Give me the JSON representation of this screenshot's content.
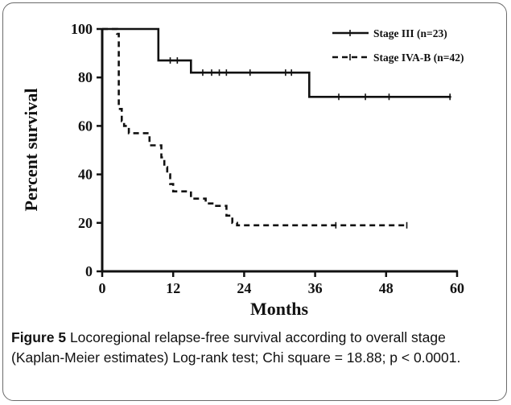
{
  "chart_data": {
    "type": "line",
    "step": true,
    "xlabel": "Months",
    "ylabel": "Percent survival",
    "xlim": [
      0,
      60
    ],
    "ylim": [
      0,
      100
    ],
    "xticks": [
      0,
      12,
      24,
      36,
      48,
      60
    ],
    "yticks": [
      0,
      20,
      40,
      60,
      80,
      100
    ],
    "grid": false,
    "legend_position": "top-right",
    "series": [
      {
        "name": "Stage III (n=23)",
        "style": "solid",
        "points": [
          [
            0,
            100
          ],
          [
            9.5,
            100
          ],
          [
            9.5,
            87
          ],
          [
            15,
            87
          ],
          [
            15,
            82
          ],
          [
            35,
            82
          ],
          [
            35,
            72
          ],
          [
            59,
            72
          ]
        ],
        "censored": [
          11.5,
          12.7,
          17,
          18.5,
          19.8,
          21,
          25,
          31,
          32,
          40,
          44.5,
          48.5,
          58.8
        ]
      },
      {
        "name": "Stage IVA-B (n=42)",
        "style": "dashed",
        "points": [
          [
            0,
            100
          ],
          [
            2.5,
            100
          ],
          [
            2.5,
            98
          ],
          [
            2.8,
            98
          ],
          [
            2.8,
            67
          ],
          [
            3.3,
            67
          ],
          [
            3.3,
            62
          ],
          [
            3.7,
            62
          ],
          [
            3.7,
            60
          ],
          [
            4.5,
            60
          ],
          [
            4.5,
            57
          ],
          [
            8,
            57
          ],
          [
            8,
            52
          ],
          [
            10,
            52
          ],
          [
            10,
            47
          ],
          [
            10.5,
            47
          ],
          [
            10.5,
            43
          ],
          [
            11,
            43
          ],
          [
            11,
            40
          ],
          [
            11.5,
            40
          ],
          [
            11.5,
            36
          ],
          [
            12,
            36
          ],
          [
            12,
            33
          ],
          [
            15,
            33
          ],
          [
            15,
            30
          ],
          [
            17.5,
            30
          ],
          [
            17.5,
            28
          ],
          [
            19,
            28
          ],
          [
            19,
            27
          ],
          [
            21,
            27
          ],
          [
            21,
            23
          ],
          [
            22,
            23
          ],
          [
            22,
            20
          ],
          [
            22.8,
            20
          ],
          [
            22.8,
            19
          ],
          [
            51.5,
            19
          ]
        ],
        "censored": [
          39.5,
          51.5
        ]
      }
    ]
  },
  "caption": {
    "label": "Figure 5",
    "text": " Locoregional relapse-free survival according to overall stage (Kaplan-Meier estimates) Log-rank test; Chi square = 18.88; p < 0.0001."
  },
  "colors": {
    "line": "#111111",
    "frame": "#6b6b6b"
  }
}
